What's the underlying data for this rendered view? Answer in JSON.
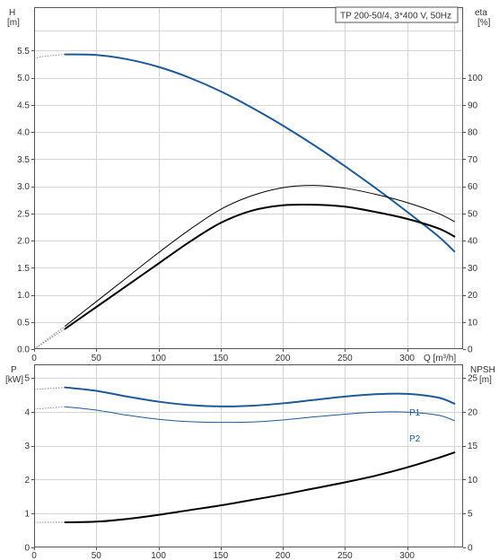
{
  "colors": {
    "head": "#1f5a96",
    "power_p1": "#1f5a96",
    "power_p2": "#1f5a96",
    "efficiency": "#000000",
    "npsh": "#000000",
    "extrapolation": "#888888"
  },
  "chart_data": [
    {
      "type": "line",
      "title": "TP 200-50/4, 3*400 V, 50Hz",
      "xlabel": "Q [m³/h]",
      "x_ticks": [
        "0",
        "50",
        "100",
        "150",
        "200",
        "250",
        "300"
      ],
      "xlim": [
        0,
        345
      ],
      "y_left": {
        "label_name": "H",
        "label_unit": "[m]",
        "ylim": [
          0,
          6.3
        ],
        "ticks": [
          "0.0",
          "0.5",
          "1.0",
          "1.5",
          "2.0",
          "2.5",
          "3.0",
          "3.5",
          "4.0",
          "4.5",
          "5.0",
          "5.5"
        ]
      },
      "y_right": {
        "label_name": "eta",
        "label_unit": "[%]",
        "ylim": [
          0,
          126
        ],
        "ticks": [
          "0",
          "10",
          "20",
          "30",
          "40",
          "50",
          "60",
          "70",
          "80",
          "90",
          "100"
        ]
      },
      "grid": true,
      "series": [
        {
          "key": "head",
          "axis": "left",
          "stroke_width": 2,
          "x": [
            0,
            10,
            25,
            50,
            75,
            100,
            125,
            150,
            175,
            200,
            225,
            250,
            275,
            300,
            325,
            338
          ],
          "y": [
            5.36,
            5.4,
            5.43,
            5.42,
            5.34,
            5.2,
            5.0,
            4.75,
            4.45,
            4.12,
            3.76,
            3.37,
            2.96,
            2.53,
            2.08,
            1.8
          ],
          "extrapolate_until": 25
        },
        {
          "key": "efficiency_upper",
          "axis": "right",
          "stroke_width": 1,
          "x": [
            0,
            25,
            50,
            75,
            100,
            125,
            150,
            175,
            200,
            225,
            250,
            275,
            300,
            325,
            338
          ],
          "y": [
            0,
            8.5,
            17.5,
            26.5,
            35.5,
            44,
            51.5,
            56.5,
            59.5,
            60.3,
            59.3,
            57,
            54,
            50,
            47
          ],
          "extrapolate_until": 25
        },
        {
          "key": "efficiency_lower",
          "axis": "right",
          "stroke_width": 2,
          "x": [
            0,
            25,
            50,
            75,
            100,
            125,
            150,
            175,
            200,
            225,
            250,
            275,
            300,
            325,
            338
          ],
          "y": [
            0,
            7.5,
            15.5,
            23.5,
            31.5,
            39.5,
            46.5,
            51,
            53,
            53.2,
            52.5,
            50.5,
            48,
            44.5,
            41.5
          ],
          "extrapolate_until": 25
        }
      ]
    },
    {
      "type": "line",
      "x_ticks": [
        "0",
        "50",
        "100",
        "150",
        "200",
        "250",
        "300"
      ],
      "xlim": [
        0,
        345
      ],
      "y_left": {
        "label_name": "P",
        "label_unit": "[kW]",
        "ylim": [
          0,
          5.4
        ],
        "ticks": [
          "0",
          "1",
          "2",
          "3",
          "4",
          "5"
        ]
      },
      "y_right": {
        "label_name": "NPSH",
        "label_unit": "[m]",
        "ylim": [
          0,
          27
        ],
        "ticks": [
          "0",
          "5",
          "10",
          "15",
          "20",
          "25"
        ]
      },
      "grid": true,
      "series": [
        {
          "key": "p1",
          "name": "P1",
          "axis": "left",
          "stroke_width": 2,
          "x": [
            0,
            25,
            50,
            75,
            100,
            125,
            150,
            175,
            200,
            225,
            250,
            275,
            300,
            325,
            338
          ],
          "y": [
            4.66,
            4.72,
            4.62,
            4.45,
            4.3,
            4.2,
            4.16,
            4.18,
            4.25,
            4.35,
            4.45,
            4.52,
            4.53,
            4.42,
            4.24
          ],
          "extrapolate_until": 25
        },
        {
          "key": "p2",
          "name": "P2",
          "axis": "left",
          "stroke_width": 1,
          "x": [
            0,
            25,
            50,
            75,
            100,
            125,
            150,
            175,
            200,
            225,
            250,
            275,
            300,
            325,
            338
          ],
          "y": [
            4.08,
            4.15,
            4.05,
            3.9,
            3.78,
            3.71,
            3.69,
            3.7,
            3.76,
            3.85,
            3.93,
            3.99,
            3.99,
            3.9,
            3.74
          ],
          "extrapolate_until": 25
        },
        {
          "key": "npsh",
          "axis": "right",
          "stroke_width": 2,
          "x": [
            0,
            25,
            50,
            75,
            100,
            125,
            150,
            175,
            200,
            225,
            250,
            275,
            300,
            325,
            338
          ],
          "y": [
            3.7,
            3.7,
            3.8,
            4.2,
            4.8,
            5.5,
            6.2,
            7.0,
            7.8,
            8.7,
            9.6,
            10.6,
            11.8,
            13.2,
            14.0
          ],
          "extrapolate_until": 25
        }
      ]
    }
  ]
}
